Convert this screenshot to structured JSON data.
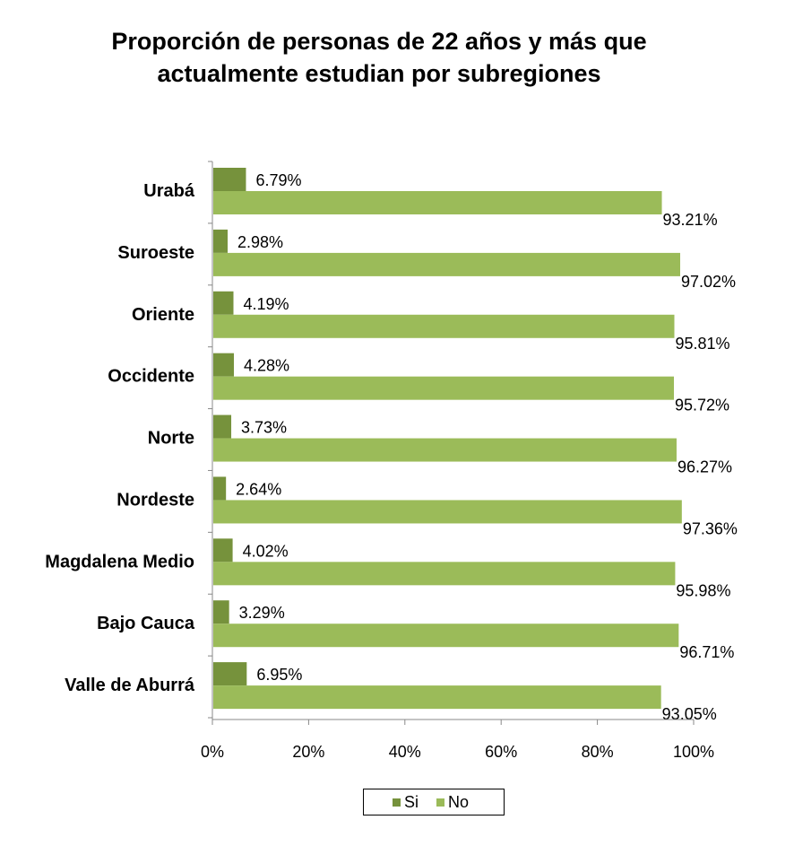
{
  "chart_data": {
    "type": "bar",
    "orientation": "horizontal",
    "title": "Proporción de personas de 22 años y más que actualmente estudian por subregiones",
    "title_lines": [
      "Proporción de personas de 22 años y más que",
      "actualmente estudian por subregiones"
    ],
    "categories": [
      "Urabá",
      "Suroeste",
      "Oriente",
      "Occidente",
      "Norte",
      "Nordeste",
      "Magdalena Medio",
      "Bajo Cauca",
      "Valle de Aburrá"
    ],
    "series": [
      {
        "name": "Si",
        "color": "#76923c",
        "values": [
          6.79,
          2.98,
          4.19,
          4.28,
          3.73,
          2.64,
          4.02,
          3.29,
          6.95
        ],
        "labels": [
          "6.79%",
          "2.98%",
          "4.19%",
          "4.28%",
          "3.73%",
          "2.64%",
          "4.02%",
          "3.29%",
          "6.95%"
        ]
      },
      {
        "name": "No",
        "color": "#9bbb59",
        "values": [
          93.21,
          97.02,
          95.81,
          95.72,
          96.27,
          97.36,
          95.98,
          96.71,
          93.05
        ],
        "labels": [
          "93.21%",
          "97.02%",
          "95.81%",
          "95.72%",
          "96.27%",
          "97.36%",
          "95.98%",
          "96.71%",
          "93.05%"
        ]
      }
    ],
    "xlim": [
      0,
      100
    ],
    "xticks": [
      0,
      20,
      40,
      60,
      80,
      100
    ],
    "xtick_labels": [
      "0%",
      "20%",
      "40%",
      "60%",
      "80%",
      "100%"
    ],
    "grid": false,
    "legend_position": "bottom"
  }
}
